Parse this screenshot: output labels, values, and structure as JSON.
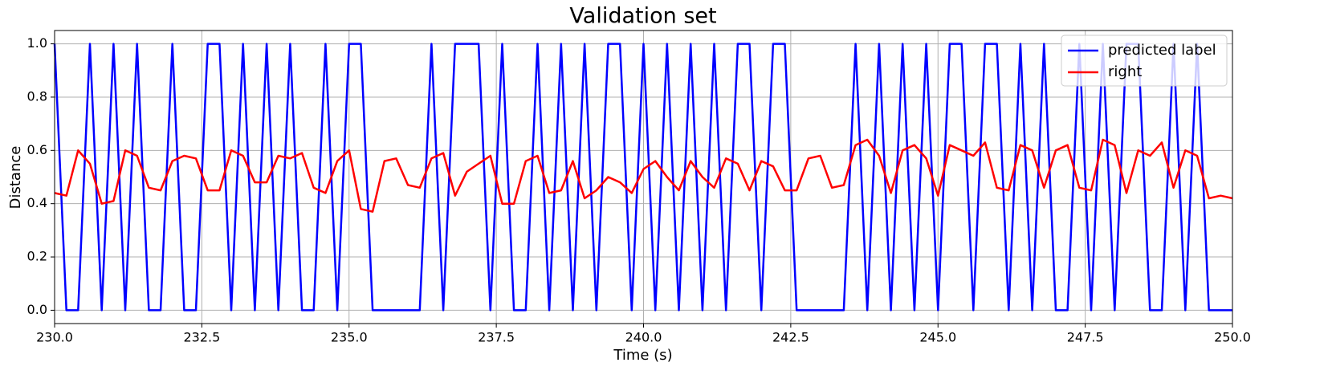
{
  "chart_data": {
    "type": "line",
    "title": "Validation set",
    "x_label": "Time (s)",
    "y_label": "Distance",
    "x": [
      230.0,
      230.2,
      230.4,
      230.6,
      230.8,
      231.0,
      231.2,
      231.4,
      231.6,
      231.8,
      232.0,
      232.2,
      232.4,
      232.6,
      232.8,
      233.0,
      233.2,
      233.4,
      233.6,
      233.8,
      234.0,
      234.2,
      234.4,
      234.6,
      234.8,
      235.0,
      235.2,
      235.4,
      235.6,
      235.8,
      236.0,
      236.2,
      236.4,
      236.6,
      236.8,
      237.0,
      237.2,
      237.4,
      237.6,
      237.8,
      238.0,
      238.2,
      238.4,
      238.6,
      238.8,
      239.0,
      239.2,
      239.4,
      239.6,
      239.8,
      240.0,
      240.2,
      240.4,
      240.6,
      240.8,
      241.0,
      241.2,
      241.4,
      241.6,
      241.8,
      242.0,
      242.2,
      242.4,
      242.6,
      242.8,
      243.0,
      243.2,
      243.4,
      243.6,
      243.8,
      244.0,
      244.2,
      244.4,
      244.6,
      244.8,
      245.0,
      245.2,
      245.4,
      245.6,
      245.8,
      246.0,
      246.2,
      246.4,
      246.6,
      246.8,
      247.0,
      247.2,
      247.4,
      247.6,
      247.8,
      248.0,
      248.2,
      248.4,
      248.6,
      248.8,
      249.0,
      249.2,
      249.4,
      249.6,
      249.8,
      250.0
    ],
    "series": [
      {
        "name": "predicted label",
        "color": "#0000ff",
        "values": [
          1,
          0,
          0,
          1,
          0,
          1,
          0,
          1,
          0,
          0,
          1,
          0,
          0,
          1,
          1,
          0,
          1,
          0,
          1,
          0,
          1,
          0,
          0,
          1,
          0,
          1,
          1,
          0,
          0,
          0,
          0,
          0,
          1,
          0,
          1,
          1,
          1,
          0,
          1,
          0,
          0,
          1,
          0,
          1,
          0,
          1,
          0,
          1,
          1,
          0,
          1,
          0,
          1,
          0,
          1,
          0,
          1,
          0,
          1,
          1,
          0,
          1,
          1,
          0,
          0,
          0,
          0,
          0,
          1,
          0,
          1,
          0,
          1,
          0,
          1,
          0,
          1,
          1,
          0,
          1,
          1,
          0,
          1,
          0,
          1,
          0,
          0,
          1,
          0,
          1,
          0,
          1,
          1,
          0,
          0,
          1,
          0,
          1,
          0,
          0,
          0
        ]
      },
      {
        "name": "right",
        "color": "#ff0000",
        "values": [
          0.44,
          0.43,
          0.6,
          0.55,
          0.4,
          0.41,
          0.6,
          0.58,
          0.46,
          0.45,
          0.56,
          0.58,
          0.57,
          0.45,
          0.45,
          0.6,
          0.58,
          0.48,
          0.48,
          0.58,
          0.57,
          0.59,
          0.46,
          0.44,
          0.56,
          0.6,
          0.38,
          0.37,
          0.56,
          0.57,
          0.47,
          0.46,
          0.57,
          0.59,
          0.43,
          0.52,
          0.55,
          0.58,
          0.4,
          0.4,
          0.56,
          0.58,
          0.44,
          0.45,
          0.56,
          0.42,
          0.45,
          0.5,
          0.48,
          0.44,
          0.53,
          0.56,
          0.5,
          0.45,
          0.56,
          0.5,
          0.46,
          0.57,
          0.55,
          0.45,
          0.56,
          0.54,
          0.45,
          0.45,
          0.57,
          0.58,
          0.46,
          0.47,
          0.62,
          0.64,
          0.58,
          0.44,
          0.6,
          0.62,
          0.57,
          0.43,
          0.62,
          0.6,
          0.58,
          0.63,
          0.46,
          0.45,
          0.62,
          0.6,
          0.46,
          0.6,
          0.62,
          0.46,
          0.45,
          0.64,
          0.62,
          0.44,
          0.6,
          0.58,
          0.63,
          0.46,
          0.6,
          0.58,
          0.42,
          0.43,
          0.42
        ]
      }
    ],
    "xlim": [
      230,
      250
    ],
    "ylim": [
      -0.05,
      1.05
    ],
    "xticks": [
      {
        "value": 230,
        "label": "230.0"
      },
      232.5,
      {
        "value": 235,
        "label": "235.0"
      },
      237.5,
      {
        "value": 240,
        "label": "240.0"
      },
      242.5,
      {
        "value": 245,
        "label": "245.0"
      },
      247.5,
      {
        "value": 250,
        "label": "250.0"
      }
    ],
    "yticks": [
      {
        "value": 0,
        "label": "0.0"
      },
      0.2,
      0.4,
      0.6,
      0.8,
      {
        "value": 1,
        "label": "1.0"
      }
    ],
    "grid": true,
    "legend": "upper right"
  }
}
